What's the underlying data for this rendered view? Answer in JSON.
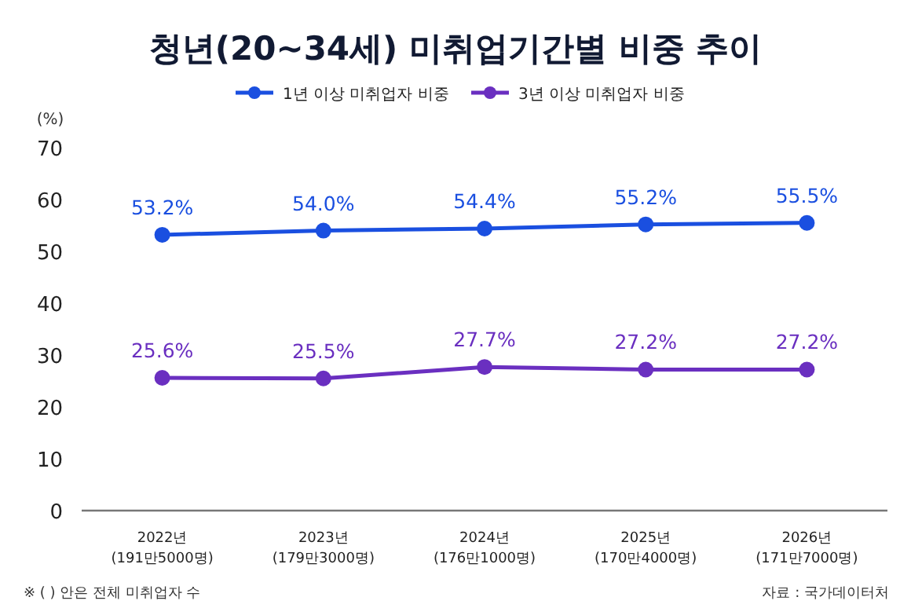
{
  "chart_data": {
    "type": "line",
    "title": "청년(20~34세) 미취업기간별 비중 추이",
    "ylabel": "(%)",
    "categories": [
      "2022년\n(191만5000명)",
      "2023년\n(179만3000명)",
      "2024년\n(176만1000명)",
      "2025년\n(170만4000명)",
      "2026년\n(171만7000명)"
    ],
    "series": [
      {
        "name": "1년 이상 미취업자 비중",
        "color": "#1a4fe0",
        "values": [
          53.2,
          54.0,
          54.4,
          55.2,
          55.5
        ],
        "value_labels": [
          "53.2%",
          "54.0%",
          "54.4%",
          "55.2%",
          "55.5%"
        ]
      },
      {
        "name": "3년 이상 미취업자 비중",
        "color": "#6a2fc0",
        "values": [
          25.6,
          25.5,
          27.7,
          27.2,
          27.2
        ],
        "value_labels": [
          "25.6%",
          "25.5%",
          "27.7%",
          "27.2%",
          "27.2%"
        ]
      }
    ],
    "ylim": [
      0,
      70
    ],
    "yticks": [
      0,
      10,
      20,
      30,
      40,
      50,
      60,
      70
    ],
    "marker": "circle",
    "legend": "top",
    "grid": false,
    "annotations": [
      "※ ( ) 안은 전체 미취업자 수",
      "자료 : 국가데이터처"
    ]
  }
}
